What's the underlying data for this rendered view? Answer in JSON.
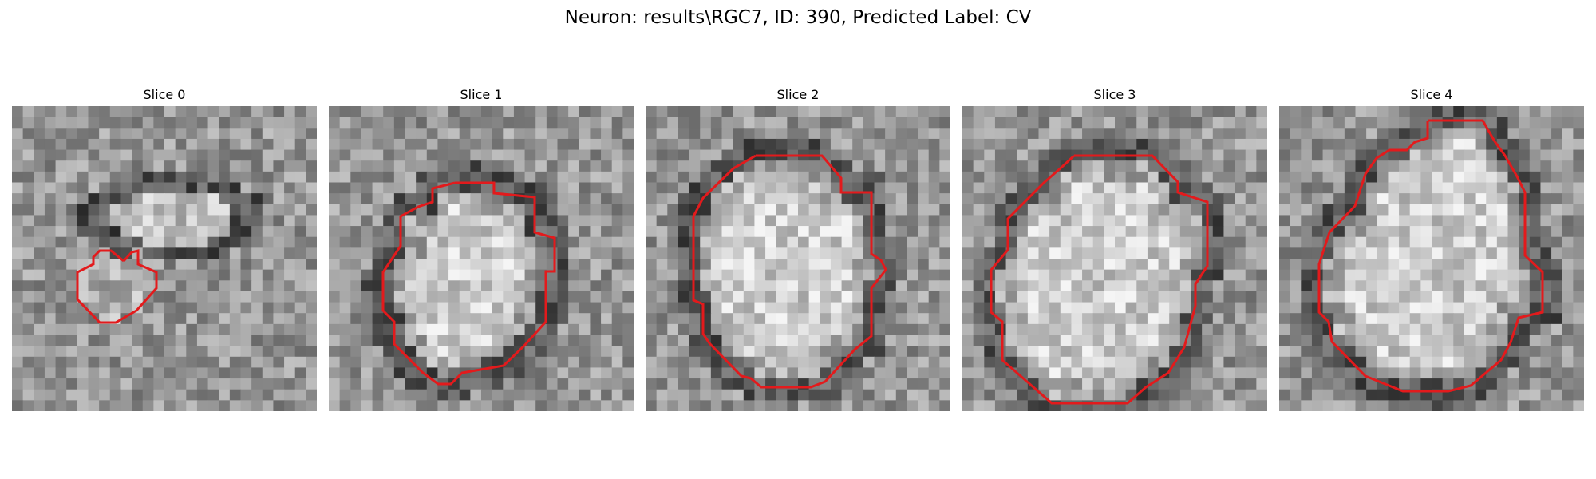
{
  "figure": {
    "title": "Neuron: results\\RGC7, ID: 390, Predicted Label: CV",
    "contour_color": "#e31a1c",
    "colormap": "grayscale"
  },
  "slices": [
    {
      "title": "Slice 0",
      "image_description": "grayscale microscopy slice with a small hexagonal red contour in lower-left region"
    },
    {
      "title": "Slice 1",
      "image_description": "grayscale microscopy slice with red contour outlining bright oval cell body"
    },
    {
      "title": "Slice 2",
      "image_description": "grayscale microscopy slice with large red contour around bright round cell"
    },
    {
      "title": "Slice 3",
      "image_description": "grayscale microscopy slice with large red contour around bright cell body"
    },
    {
      "title": "Slice 4",
      "image_description": "grayscale microscopy slice with large red contour around bright cell body"
    }
  ]
}
